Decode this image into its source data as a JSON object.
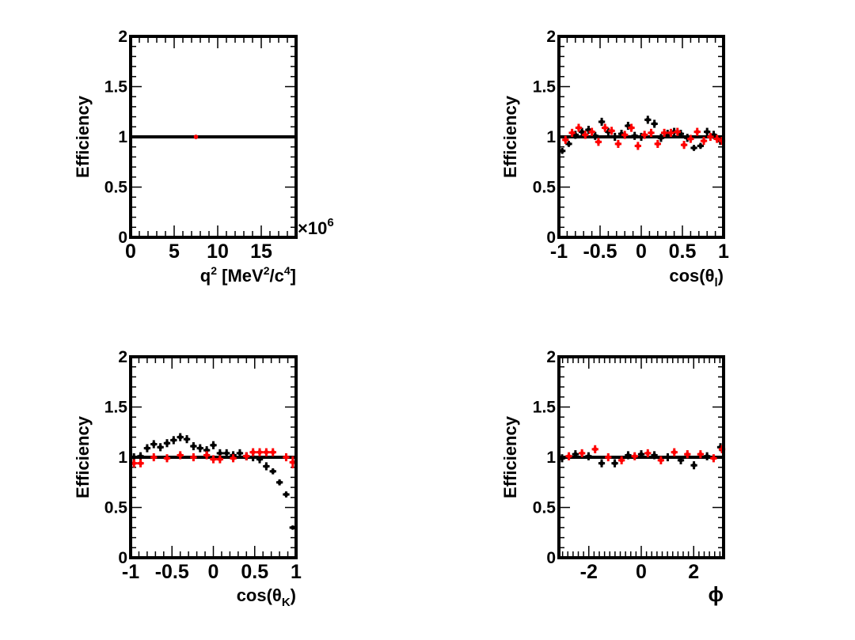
{
  "chart_data": [
    {
      "type": "scatter",
      "ylabel": "Efficiency",
      "xlabel": {
        "pre": "q",
        "sup1": "2",
        "mid1": " [MeV",
        "sup2": "2",
        "mid2": "/c",
        "sup3": "4",
        "post": "]"
      },
      "xlim": [
        0,
        19
      ],
      "ylim": [
        0,
        2
      ],
      "x_ticks": [
        0,
        5,
        10,
        15
      ],
      "x_tick_labels": [
        "0",
        "5",
        "10",
        "15"
      ],
      "y_ticks": [
        0,
        0.5,
        1,
        1.5,
        2
      ],
      "y_tick_labels": [
        "0",
        "0.5",
        "1",
        "1.5",
        "2"
      ],
      "x_exponent": {
        "base": "×10",
        "exp": "6"
      },
      "reference_line": 1,
      "series": [
        {
          "color": "#000000",
          "x_err": 0.05,
          "x": [
            7.5
          ],
          "y": [
            1.0
          ],
          "y_err": [
            0.01
          ]
        },
        {
          "color": "#ff0000",
          "x_err": 0.05,
          "x": [
            7.5
          ],
          "y": [
            1.0
          ],
          "y_err": [
            0.01
          ]
        }
      ]
    },
    {
      "type": "scatter",
      "ylabel": "Efficiency",
      "xlabel": {
        "pre": "cos(θ",
        "sub": "l",
        "post": ")"
      },
      "xlim": [
        -1,
        1
      ],
      "ylim": [
        0,
        2
      ],
      "x_ticks": [
        -1,
        -0.5,
        0,
        0.5,
        1
      ],
      "x_tick_labels": [
        "-1",
        "-0.5",
        "0",
        "0.5",
        "1"
      ],
      "y_ticks": [
        0,
        0.5,
        1,
        1.5,
        2
      ],
      "y_tick_labels": [
        "0",
        "0.5",
        "1",
        "1.5",
        "2"
      ],
      "reference_line": 1,
      "series": [
        {
          "color": "#000000",
          "x_err": 0.04,
          "x": [
            -0.96,
            -0.88,
            -0.8,
            -0.72,
            -0.64,
            -0.56,
            -0.48,
            -0.4,
            -0.32,
            -0.24,
            -0.16,
            -0.08,
            0.0,
            0.08,
            0.16,
            0.24,
            0.32,
            0.4,
            0.48,
            0.56,
            0.64,
            0.72,
            0.8,
            0.88,
            0.96
          ],
          "y": [
            0.86,
            0.93,
            1.02,
            1.05,
            1.07,
            1.01,
            1.15,
            1.05,
            1.0,
            1.03,
            1.11,
            1.01,
            1.0,
            1.17,
            1.13,
            0.99,
            1.03,
            1.05,
            1.03,
            0.99,
            0.89,
            0.91,
            1.05,
            1.02,
            0.96
          ],
          "y_err": [
            0.03,
            0.03,
            0.04,
            0.04,
            0.04,
            0.04,
            0.04,
            0.04,
            0.04,
            0.04,
            0.04,
            0.04,
            0.04,
            0.04,
            0.04,
            0.04,
            0.04,
            0.04,
            0.04,
            0.04,
            0.03,
            0.03,
            0.04,
            0.04,
            0.04
          ]
        },
        {
          "color": "#ff0000",
          "x_err": 0.04,
          "x": [
            -0.92,
            -0.84,
            -0.76,
            -0.68,
            -0.6,
            -0.52,
            -0.44,
            -0.36,
            -0.28,
            -0.2,
            -0.12,
            -0.04,
            0.04,
            0.12,
            0.2,
            0.28,
            0.36,
            0.44,
            0.52,
            0.6,
            0.68,
            0.76,
            0.84,
            0.92,
            0.98
          ],
          "y": [
            0.97,
            1.04,
            1.09,
            1.02,
            1.05,
            0.95,
            1.09,
            1.06,
            0.93,
            1.02,
            1.09,
            0.91,
            1.02,
            1.04,
            0.93,
            1.04,
            1.04,
            1.05,
            0.92,
            0.98,
            1.05,
            0.96,
            1.0,
            0.98,
            0.96
          ],
          "y_err": [
            0.04,
            0.04,
            0.04,
            0.04,
            0.04,
            0.04,
            0.04,
            0.04,
            0.04,
            0.04,
            0.04,
            0.04,
            0.04,
            0.04,
            0.04,
            0.04,
            0.04,
            0.04,
            0.04,
            0.04,
            0.04,
            0.04,
            0.04,
            0.04,
            0.04
          ]
        }
      ]
    },
    {
      "type": "scatter",
      "ylabel": "Efficiency",
      "xlabel": {
        "pre": "cos(θ",
        "sub": "K",
        "post": ")"
      },
      "xlim": [
        -1,
        1
      ],
      "ylim": [
        0,
        2
      ],
      "x_ticks": [
        -1,
        -0.5,
        0,
        0.5,
        1
      ],
      "x_tick_labels": [
        "-1",
        "-0.5",
        "0",
        "0.5",
        "1"
      ],
      "y_ticks": [
        0,
        0.5,
        1,
        1.5,
        2
      ],
      "y_tick_labels": [
        "0",
        "0.5",
        "1",
        "1.5",
        "2"
      ],
      "reference_line": 1,
      "series": [
        {
          "color": "#000000",
          "x_err": 0.04,
          "x": [
            -0.96,
            -0.88,
            -0.8,
            -0.72,
            -0.64,
            -0.56,
            -0.48,
            -0.4,
            -0.32,
            -0.24,
            -0.16,
            -0.08,
            0.0,
            0.08,
            0.16,
            0.24,
            0.32,
            0.4,
            0.48,
            0.56,
            0.64,
            0.72,
            0.8,
            0.88,
            0.96
          ],
          "y": [
            1.0,
            1.01,
            1.09,
            1.13,
            1.1,
            1.14,
            1.17,
            1.2,
            1.18,
            1.11,
            1.09,
            1.07,
            1.12,
            1.04,
            1.04,
            1.02,
            1.04,
            1.01,
            1.0,
            0.98,
            0.91,
            0.86,
            0.75,
            0.63,
            0.3
          ],
          "y_err": [
            0.04,
            0.04,
            0.04,
            0.04,
            0.04,
            0.04,
            0.04,
            0.04,
            0.04,
            0.04,
            0.04,
            0.04,
            0.04,
            0.04,
            0.04,
            0.04,
            0.04,
            0.04,
            0.04,
            0.04,
            0.04,
            0.03,
            0.03,
            0.03,
            0.02
          ]
        },
        {
          "color": "#ff0000",
          "x_err": 0.04,
          "x": [
            -0.96,
            -0.88,
            -0.72,
            -0.56,
            -0.4,
            -0.24,
            -0.08,
            0.0,
            0.08,
            0.24,
            0.4,
            0.48,
            0.56,
            0.64,
            0.72,
            0.88,
            0.96
          ],
          "y": [
            0.94,
            0.94,
            1.0,
            0.99,
            1.02,
            1.0,
            1.02,
            0.98,
            0.98,
            0.99,
            1.01,
            1.05,
            1.05,
            1.05,
            1.05,
            1.0,
            0.95
          ],
          "y_err": [
            0.04,
            0.04,
            0.04,
            0.04,
            0.04,
            0.04,
            0.04,
            0.04,
            0.04,
            0.04,
            0.04,
            0.04,
            0.04,
            0.04,
            0.04,
            0.04,
            0.06
          ]
        }
      ]
    },
    {
      "type": "scatter",
      "ylabel": "Efficiency",
      "xlabel": {
        "pre": "ϕ"
      },
      "xlim": [
        -3.14,
        3.14
      ],
      "ylim": [
        0,
        2
      ],
      "x_ticks": [
        -2,
        0,
        2
      ],
      "x_tick_labels": [
        "-2",
        "0",
        "2"
      ],
      "y_ticks": [
        0,
        0.5,
        1,
        1.5,
        2
      ],
      "y_tick_labels": [
        "0",
        "0.5",
        "1",
        "1.5",
        "2"
      ],
      "reference_line": 1,
      "series": [
        {
          "color": "#000000",
          "x_err": 0.125,
          "x": [
            -3.02,
            -2.51,
            -2.01,
            -1.51,
            -1.01,
            -0.5,
            0.0,
            0.5,
            1.01,
            1.51,
            2.01,
            2.51,
            3.02
          ],
          "y": [
            0.99,
            1.03,
            1.01,
            0.94,
            0.94,
            1.02,
            1.03,
            1.02,
            1.0,
            0.97,
            0.92,
            1.01,
            1.1
          ],
          "y_err": [
            0.04,
            0.04,
            0.04,
            0.04,
            0.04,
            0.04,
            0.04,
            0.04,
            0.04,
            0.04,
            0.04,
            0.04,
            0.04
          ]
        },
        {
          "color": "#ff0000",
          "x_err": 0.125,
          "x": [
            -2.76,
            -2.26,
            -1.76,
            -1.26,
            -0.75,
            -0.25,
            0.25,
            0.75,
            1.26,
            1.76,
            2.26,
            2.76,
            3.08
          ],
          "y": [
            1.01,
            1.04,
            1.08,
            1.0,
            0.97,
            1.01,
            1.04,
            0.97,
            1.05,
            1.03,
            1.03,
            0.99,
            1.08
          ],
          "y_err": [
            0.04,
            0.04,
            0.04,
            0.04,
            0.04,
            0.04,
            0.04,
            0.04,
            0.04,
            0.04,
            0.04,
            0.04,
            0.04
          ]
        }
      ]
    }
  ]
}
